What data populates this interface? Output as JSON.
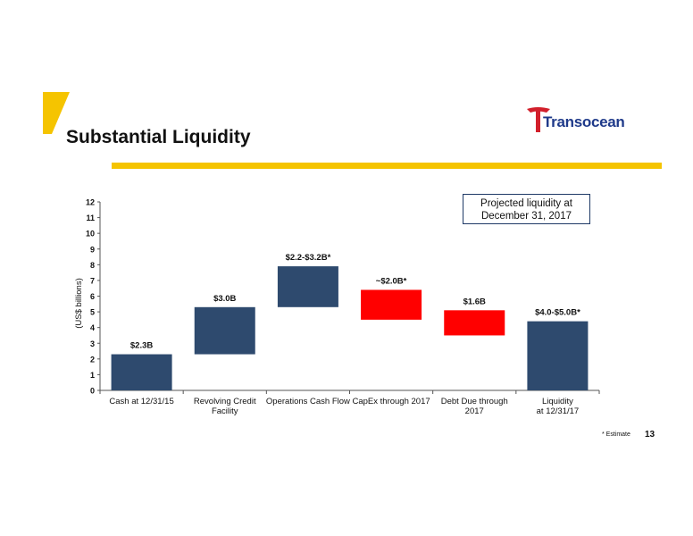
{
  "slide": {
    "title": "Substantial Liquidity",
    "logo_text": "Transocean",
    "callout": "Projected liquidity at December 31, 2017",
    "footnote": "* Estimate",
    "page_number": "13",
    "colors": {
      "accent": "#F5C400",
      "bar_blue": "#2E4A6E",
      "bar_red": "#FF0000",
      "logo_red": "#D21F2B",
      "logo_blue": "#1F3A8A"
    }
  },
  "chart_data": {
    "type": "bar",
    "subtype": "waterfall",
    "ylabel": "(US$ billions)",
    "ylim": [
      0,
      12
    ],
    "yticks": [
      "0",
      "1",
      "2",
      "3",
      "4",
      "5",
      "6",
      "7",
      "8",
      "9",
      "10",
      "11",
      "12"
    ],
    "categories": [
      [
        "Cash at 12/31/15"
      ],
      [
        "Revolving Credit",
        "Facility"
      ],
      [
        "Operations Cash Flow"
      ],
      [
        "CapEx through 2017"
      ],
      [
        "Debt Due through",
        "2017"
      ],
      [
        "Liquidity",
        "at 12/31/17"
      ]
    ],
    "bars": [
      {
        "bottom": 0.0,
        "top": 2.3,
        "color": "blue",
        "label": "$2.3B"
      },
      {
        "bottom": 2.3,
        "top": 5.3,
        "color": "blue",
        "label": "$3.0B"
      },
      {
        "bottom": 5.3,
        "top": 7.9,
        "color": "blue",
        "label": "$2.2-$3.2B*"
      },
      {
        "bottom": 4.5,
        "top": 6.4,
        "color": "red",
        "label": "~$2.0B*"
      },
      {
        "bottom": 3.5,
        "top": 5.1,
        "color": "red",
        "label": "$1.6B"
      },
      {
        "bottom": 0.0,
        "top": 4.4,
        "color": "blue",
        "label": "$4.0-$5.0B*"
      }
    ],
    "grid": false,
    "legend": "none"
  }
}
